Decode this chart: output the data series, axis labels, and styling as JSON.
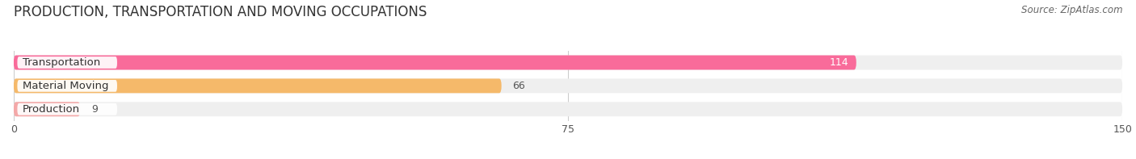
{
  "title": "PRODUCTION, TRANSPORTATION AND MOVING OCCUPATIONS",
  "source": "Source: ZipAtlas.com",
  "categories": [
    "Transportation",
    "Material Moving",
    "Production"
  ],
  "values": [
    114,
    66,
    9
  ],
  "bar_colors": [
    "#F96B9A",
    "#F5B96A",
    "#F4A8A8"
  ],
  "bar_bg_color": "#EFEFEF",
  "xlim": [
    0,
    150
  ],
  "xticks": [
    0,
    75,
    150
  ],
  "title_fontsize": 12,
  "label_fontsize": 9.5,
  "value_fontsize": 9,
  "background_color": "#FFFFFF",
  "value_colors": [
    "#FFFFFF",
    "#555555",
    "#555555"
  ]
}
